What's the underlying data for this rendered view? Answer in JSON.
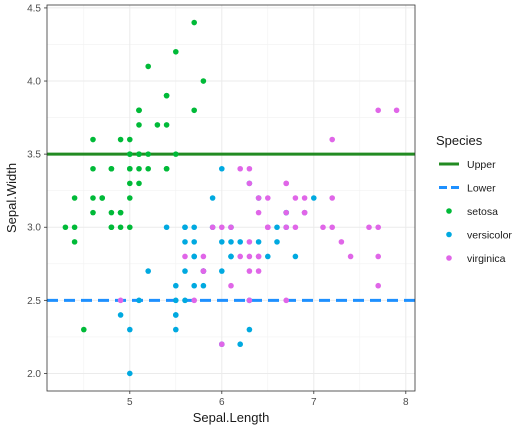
{
  "chart_data": {
    "type": "scatter",
    "xlabel": "Sepal.Length",
    "ylabel": "Sepal.Width",
    "xlim": [
      4.1,
      8.1
    ],
    "ylim": [
      1.88,
      4.52
    ],
    "x_ticks": [
      5,
      6,
      7,
      8
    ],
    "x_tick_labels": [
      "5",
      "6",
      "7",
      "8"
    ],
    "y_ticks": [
      2.0,
      2.5,
      3.0,
      3.5,
      4.0,
      4.5
    ],
    "y_tick_labels": [
      "2.0",
      "2.5",
      "3.0",
      "3.5",
      "4.0",
      "4.5"
    ],
    "grid": true,
    "legend": {
      "title": "Species",
      "placement": "right",
      "entries": [
        {
          "label": "Upper",
          "kind": "solid-line",
          "color": "#228B22"
        },
        {
          "label": "Lower",
          "kind": "dashed-line",
          "color": "#1E90FF"
        },
        {
          "label": "setosa",
          "kind": "point",
          "color": "#00BA38"
        },
        {
          "label": "versicolor",
          "kind": "point",
          "color": "#00A9E0"
        },
        {
          "label": "virginica",
          "kind": "point",
          "color": "#E066E8"
        }
      ]
    },
    "reference_lines": [
      {
        "name": "Upper",
        "y": 3.5,
        "color": "#228B22",
        "style": "solid"
      },
      {
        "name": "Lower",
        "y": 2.5,
        "color": "#1E90FF",
        "style": "dashed"
      }
    ],
    "series": [
      {
        "name": "setosa",
        "color": "#00BA38",
        "points": [
          [
            5.1,
            3.5
          ],
          [
            4.9,
            3.0
          ],
          [
            4.7,
            3.2
          ],
          [
            4.6,
            3.1
          ],
          [
            5.0,
            3.6
          ],
          [
            5.4,
            3.9
          ],
          [
            4.6,
            3.4
          ],
          [
            5.0,
            3.4
          ],
          [
            4.4,
            2.9
          ],
          [
            4.9,
            3.1
          ],
          [
            5.4,
            3.7
          ],
          [
            4.8,
            3.4
          ],
          [
            4.8,
            3.0
          ],
          [
            4.3,
            3.0
          ],
          [
            5.8,
            4.0
          ],
          [
            5.7,
            4.4
          ],
          [
            5.4,
            3.9
          ],
          [
            5.1,
            3.5
          ],
          [
            5.7,
            3.8
          ],
          [
            5.1,
            3.8
          ],
          [
            5.4,
            3.4
          ],
          [
            5.1,
            3.7
          ],
          [
            4.6,
            3.6
          ],
          [
            5.1,
            3.3
          ],
          [
            4.8,
            3.4
          ],
          [
            5.0,
            3.0
          ],
          [
            5.0,
            3.4
          ],
          [
            5.2,
            3.5
          ],
          [
            5.2,
            3.4
          ],
          [
            4.7,
            3.2
          ],
          [
            4.8,
            3.1
          ],
          [
            5.4,
            3.4
          ],
          [
            5.2,
            4.1
          ],
          [
            5.5,
            4.2
          ],
          [
            4.9,
            3.1
          ],
          [
            5.0,
            3.2
          ],
          [
            5.5,
            3.5
          ],
          [
            4.9,
            3.6
          ],
          [
            4.4,
            3.0
          ],
          [
            5.1,
            3.4
          ],
          [
            5.0,
            3.5
          ],
          [
            4.5,
            2.3
          ],
          [
            4.4,
            3.2
          ],
          [
            5.0,
            3.5
          ],
          [
            5.1,
            3.8
          ],
          [
            4.8,
            3.0
          ],
          [
            5.1,
            3.8
          ],
          [
            4.6,
            3.2
          ],
          [
            5.3,
            3.7
          ],
          [
            5.0,
            3.3
          ]
        ]
      },
      {
        "name": "versicolor",
        "color": "#00A9E0",
        "points": [
          [
            7.0,
            3.2
          ],
          [
            6.4,
            3.2
          ],
          [
            6.9,
            3.1
          ],
          [
            5.5,
            2.3
          ],
          [
            6.5,
            2.8
          ],
          [
            5.7,
            2.8
          ],
          [
            6.3,
            3.3
          ],
          [
            4.9,
            2.4
          ],
          [
            6.6,
            2.9
          ],
          [
            5.2,
            2.7
          ],
          [
            5.0,
            2.0
          ],
          [
            5.9,
            3.0
          ],
          [
            6.0,
            2.2
          ],
          [
            6.1,
            2.9
          ],
          [
            5.6,
            2.9
          ],
          [
            6.7,
            3.1
          ],
          [
            5.6,
            3.0
          ],
          [
            5.8,
            2.7
          ],
          [
            6.2,
            2.2
          ],
          [
            5.6,
            2.5
          ],
          [
            5.9,
            3.2
          ],
          [
            6.1,
            2.8
          ],
          [
            6.3,
            2.5
          ],
          [
            6.1,
            2.8
          ],
          [
            6.4,
            2.9
          ],
          [
            6.6,
            3.0
          ],
          [
            6.8,
            2.8
          ],
          [
            6.7,
            3.0
          ],
          [
            6.0,
            2.9
          ],
          [
            5.7,
            2.6
          ],
          [
            5.5,
            2.4
          ],
          [
            5.5,
            2.4
          ],
          [
            5.8,
            2.7
          ],
          [
            6.0,
            2.7
          ],
          [
            5.4,
            3.0
          ],
          [
            6.0,
            3.4
          ],
          [
            6.7,
            3.1
          ],
          [
            6.3,
            2.3
          ],
          [
            5.6,
            3.0
          ],
          [
            5.5,
            2.5
          ],
          [
            5.5,
            2.6
          ],
          [
            6.1,
            3.0
          ],
          [
            5.8,
            2.6
          ],
          [
            5.0,
            2.3
          ],
          [
            5.6,
            2.7
          ],
          [
            5.7,
            3.0
          ],
          [
            5.7,
            2.9
          ],
          [
            6.2,
            2.9
          ],
          [
            5.1,
            2.5
          ],
          [
            5.7,
            2.8
          ]
        ]
      },
      {
        "name": "virginica",
        "color": "#E066E8",
        "points": [
          [
            6.3,
            3.3
          ],
          [
            5.8,
            2.7
          ],
          [
            7.1,
            3.0
          ],
          [
            6.3,
            2.9
          ],
          [
            6.5,
            3.0
          ],
          [
            7.6,
            3.0
          ],
          [
            4.9,
            2.5
          ],
          [
            7.3,
            2.9
          ],
          [
            6.7,
            2.5
          ],
          [
            7.2,
            3.6
          ],
          [
            6.5,
            3.2
          ],
          [
            6.4,
            2.7
          ],
          [
            6.8,
            3.0
          ],
          [
            5.7,
            2.5
          ],
          [
            5.8,
            2.8
          ],
          [
            6.4,
            3.2
          ],
          [
            6.5,
            3.0
          ],
          [
            7.7,
            3.8
          ],
          [
            7.7,
            2.6
          ],
          [
            6.0,
            2.2
          ],
          [
            6.9,
            3.2
          ],
          [
            5.6,
            2.8
          ],
          [
            7.7,
            2.8
          ],
          [
            6.3,
            2.7
          ],
          [
            6.7,
            3.3
          ],
          [
            7.2,
            3.2
          ],
          [
            6.2,
            2.8
          ],
          [
            6.1,
            3.0
          ],
          [
            6.4,
            2.8
          ],
          [
            7.2,
            3.0
          ],
          [
            7.4,
            2.8
          ],
          [
            7.9,
            3.8
          ],
          [
            6.4,
            2.8
          ],
          [
            6.3,
            2.8
          ],
          [
            6.1,
            2.6
          ],
          [
            7.7,
            3.0
          ],
          [
            6.3,
            3.4
          ],
          [
            6.4,
            3.1
          ],
          [
            6.0,
            3.0
          ],
          [
            6.9,
            3.1
          ],
          [
            6.7,
            3.1
          ],
          [
            6.9,
            3.1
          ],
          [
            5.8,
            2.7
          ],
          [
            6.8,
            3.2
          ],
          [
            6.7,
            3.3
          ],
          [
            6.7,
            3.0
          ],
          [
            6.3,
            2.5
          ],
          [
            6.5,
            3.0
          ],
          [
            6.2,
            3.4
          ],
          [
            5.9,
            3.0
          ]
        ]
      }
    ]
  }
}
